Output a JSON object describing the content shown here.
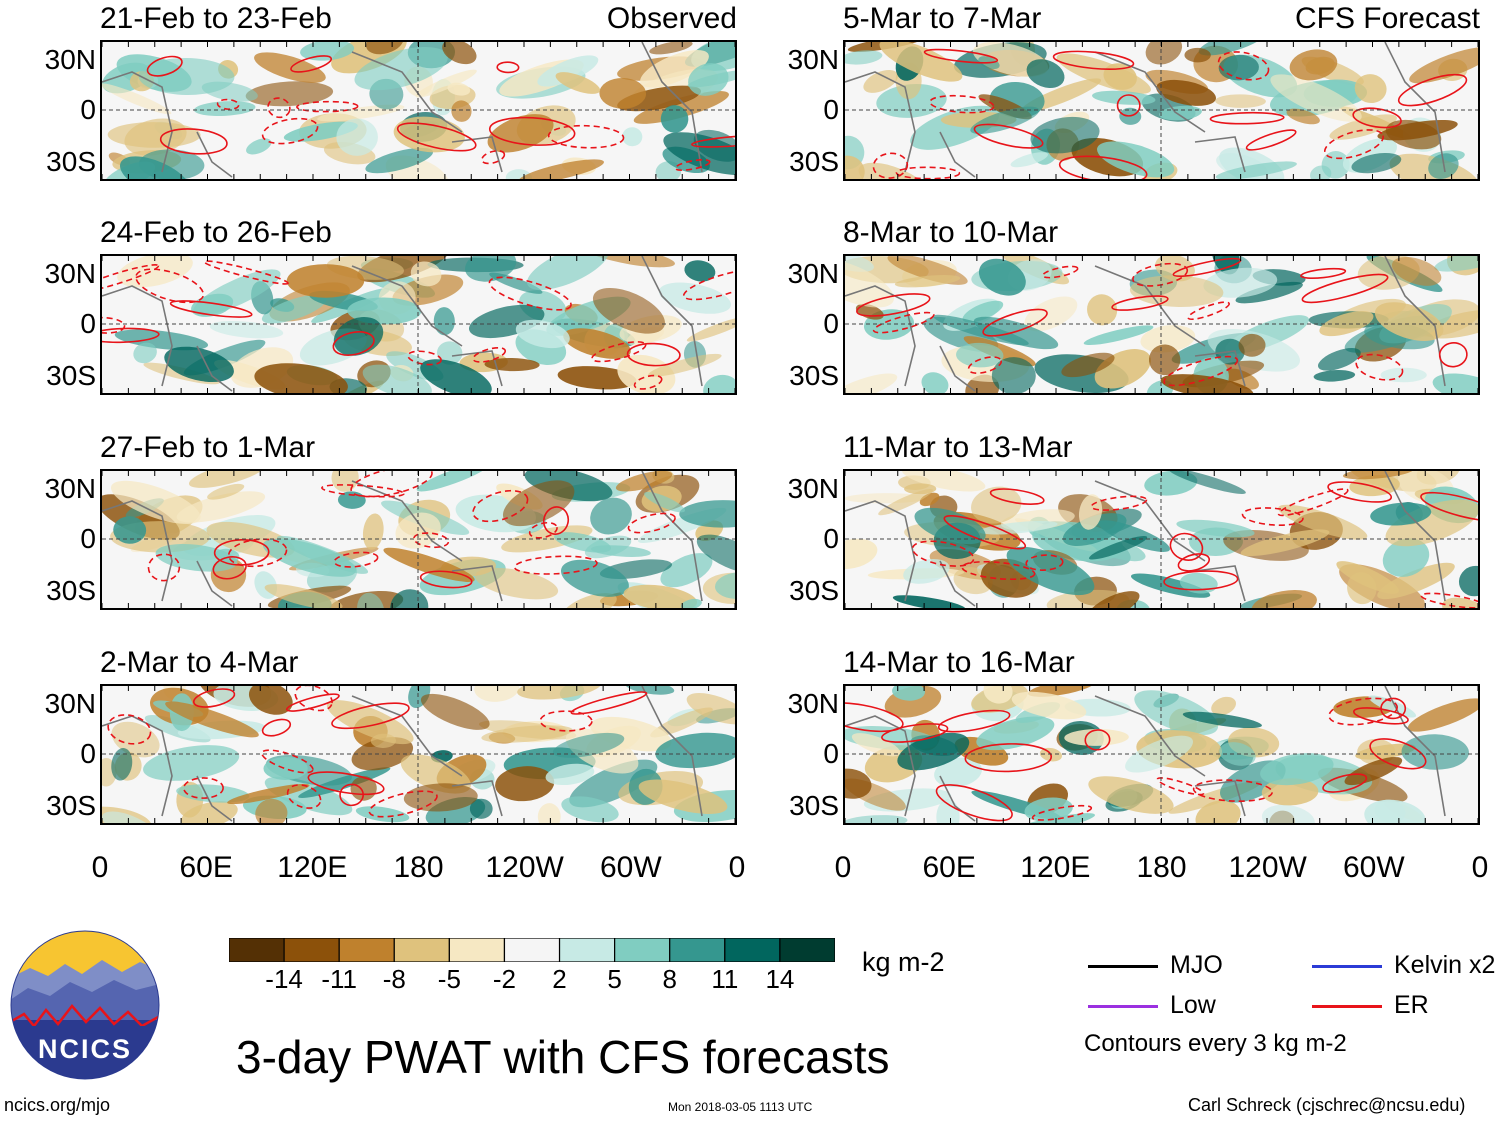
{
  "panels": [
    {
      "title": "21-Feb to 23-Feb",
      "tag": "Observed",
      "col": 0,
      "row": 0
    },
    {
      "title": "24-Feb to 26-Feb",
      "tag": "",
      "col": 0,
      "row": 1
    },
    {
      "title": "27-Feb to 1-Mar",
      "tag": "",
      "col": 0,
      "row": 2
    },
    {
      "title": "2-Mar to 4-Mar",
      "tag": "",
      "col": 0,
      "row": 3
    },
    {
      "title": "5-Mar to 7-Mar",
      "tag": "CFS Forecast",
      "col": 1,
      "row": 0
    },
    {
      "title": "8-Mar to 10-Mar",
      "tag": "",
      "col": 1,
      "row": 1
    },
    {
      "title": "11-Mar to 13-Mar",
      "tag": "",
      "col": 1,
      "row": 2
    },
    {
      "title": "14-Mar to 16-Mar",
      "tag": "",
      "col": 1,
      "row": 3
    }
  ],
  "lat_labels": [
    "30N",
    "0",
    "30S"
  ],
  "lon_labels": [
    "0",
    "60E",
    "120E",
    "180",
    "120W",
    "60W",
    "0"
  ],
  "colorbar": {
    "colors": [
      "#543005",
      "#8c510a",
      "#bf812d",
      "#dfc27d",
      "#f6e8c3",
      "#f5f5f5",
      "#c7eae5",
      "#80cdc1",
      "#35978f",
      "#01665e",
      "#003c30"
    ],
    "labels": [
      "-14",
      "-11",
      "-8",
      "-5",
      "-2",
      "2",
      "5",
      "8",
      "11",
      "14"
    ],
    "units": "kg m-2"
  },
  "legend": {
    "items": [
      {
        "label": "MJO",
        "color": "#000000"
      },
      {
        "label": "Kelvin x2",
        "color": "#2b3bd6"
      },
      {
        "label": "Low",
        "color": "#9b30e0"
      },
      {
        "label": "ER",
        "color": "#e8141a"
      }
    ],
    "note": "Contours every 3 kg m-2"
  },
  "main_title": "3-day PWAT with CFS forecasts",
  "logo_text": "NCICS",
  "footer": {
    "url": "ncics.org/mjo",
    "timestamp": "Mon 2018-03-05 1113 UTC",
    "credit": "Carl Schreck (cjschrec@ncsu.edu)"
  }
}
